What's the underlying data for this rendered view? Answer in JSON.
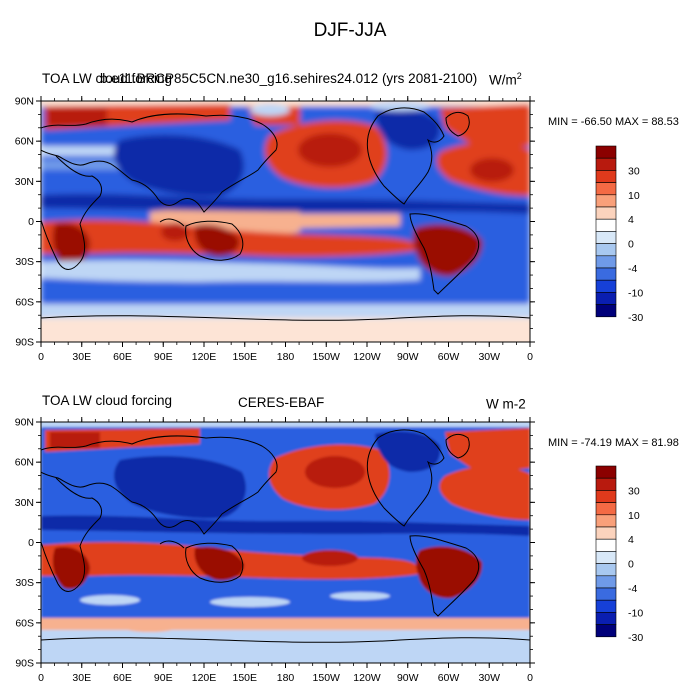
{
  "main_title": "DJF-JJA",
  "panels": [
    {
      "left_label": "TOA LW cloud forcing",
      "center_label": "b.e11.BRCP85C5CN.ne30_g16.sehires24.012 (yrs 2081-2100)",
      "units_base": "W/m",
      "units_sup": "2",
      "minmax": "MIN = -66.50 MAX =  88.53"
    },
    {
      "left_label": "TOA LW cloud forcing",
      "center_label": "CERES-EBAF",
      "units_base": "W m-2",
      "units_sup": "",
      "minmax": "MIN = -74.19 MAX =  81.98"
    }
  ],
  "lat_labels": [
    "90N",
    "60N",
    "30N",
    "0",
    "30S",
    "60S",
    "90S"
  ],
  "lon_labels": [
    "0",
    "30E",
    "60E",
    "90E",
    "120E",
    "150E",
    "180",
    "150W",
    "120W",
    "90W",
    "60W",
    "30W",
    "0"
  ],
  "colorbar": {
    "labels": [
      "30",
      "10",
      "4",
      "0",
      "-4",
      "-10",
      "-30"
    ],
    "colors": [
      "#8b0000",
      "#b81a0e",
      "#e03a1c",
      "#f46a44",
      "#f9a07a",
      "#fbd3bd",
      "#ffffff",
      "#d8e8f8",
      "#a8c8f0",
      "#6f9ae8",
      "#3a6be0",
      "#1640d8",
      "#0a1eb0",
      "#00007a"
    ]
  },
  "colors": {
    "ocean_background": "#2c5fe0",
    "deep_red": "#9a0a05",
    "red": "#e0401d",
    "light_red": "#f7b18f",
    "pale": "#fde4d6",
    "light_blue": "#bed6f5",
    "deep_blue": "#0c2aa8"
  }
}
